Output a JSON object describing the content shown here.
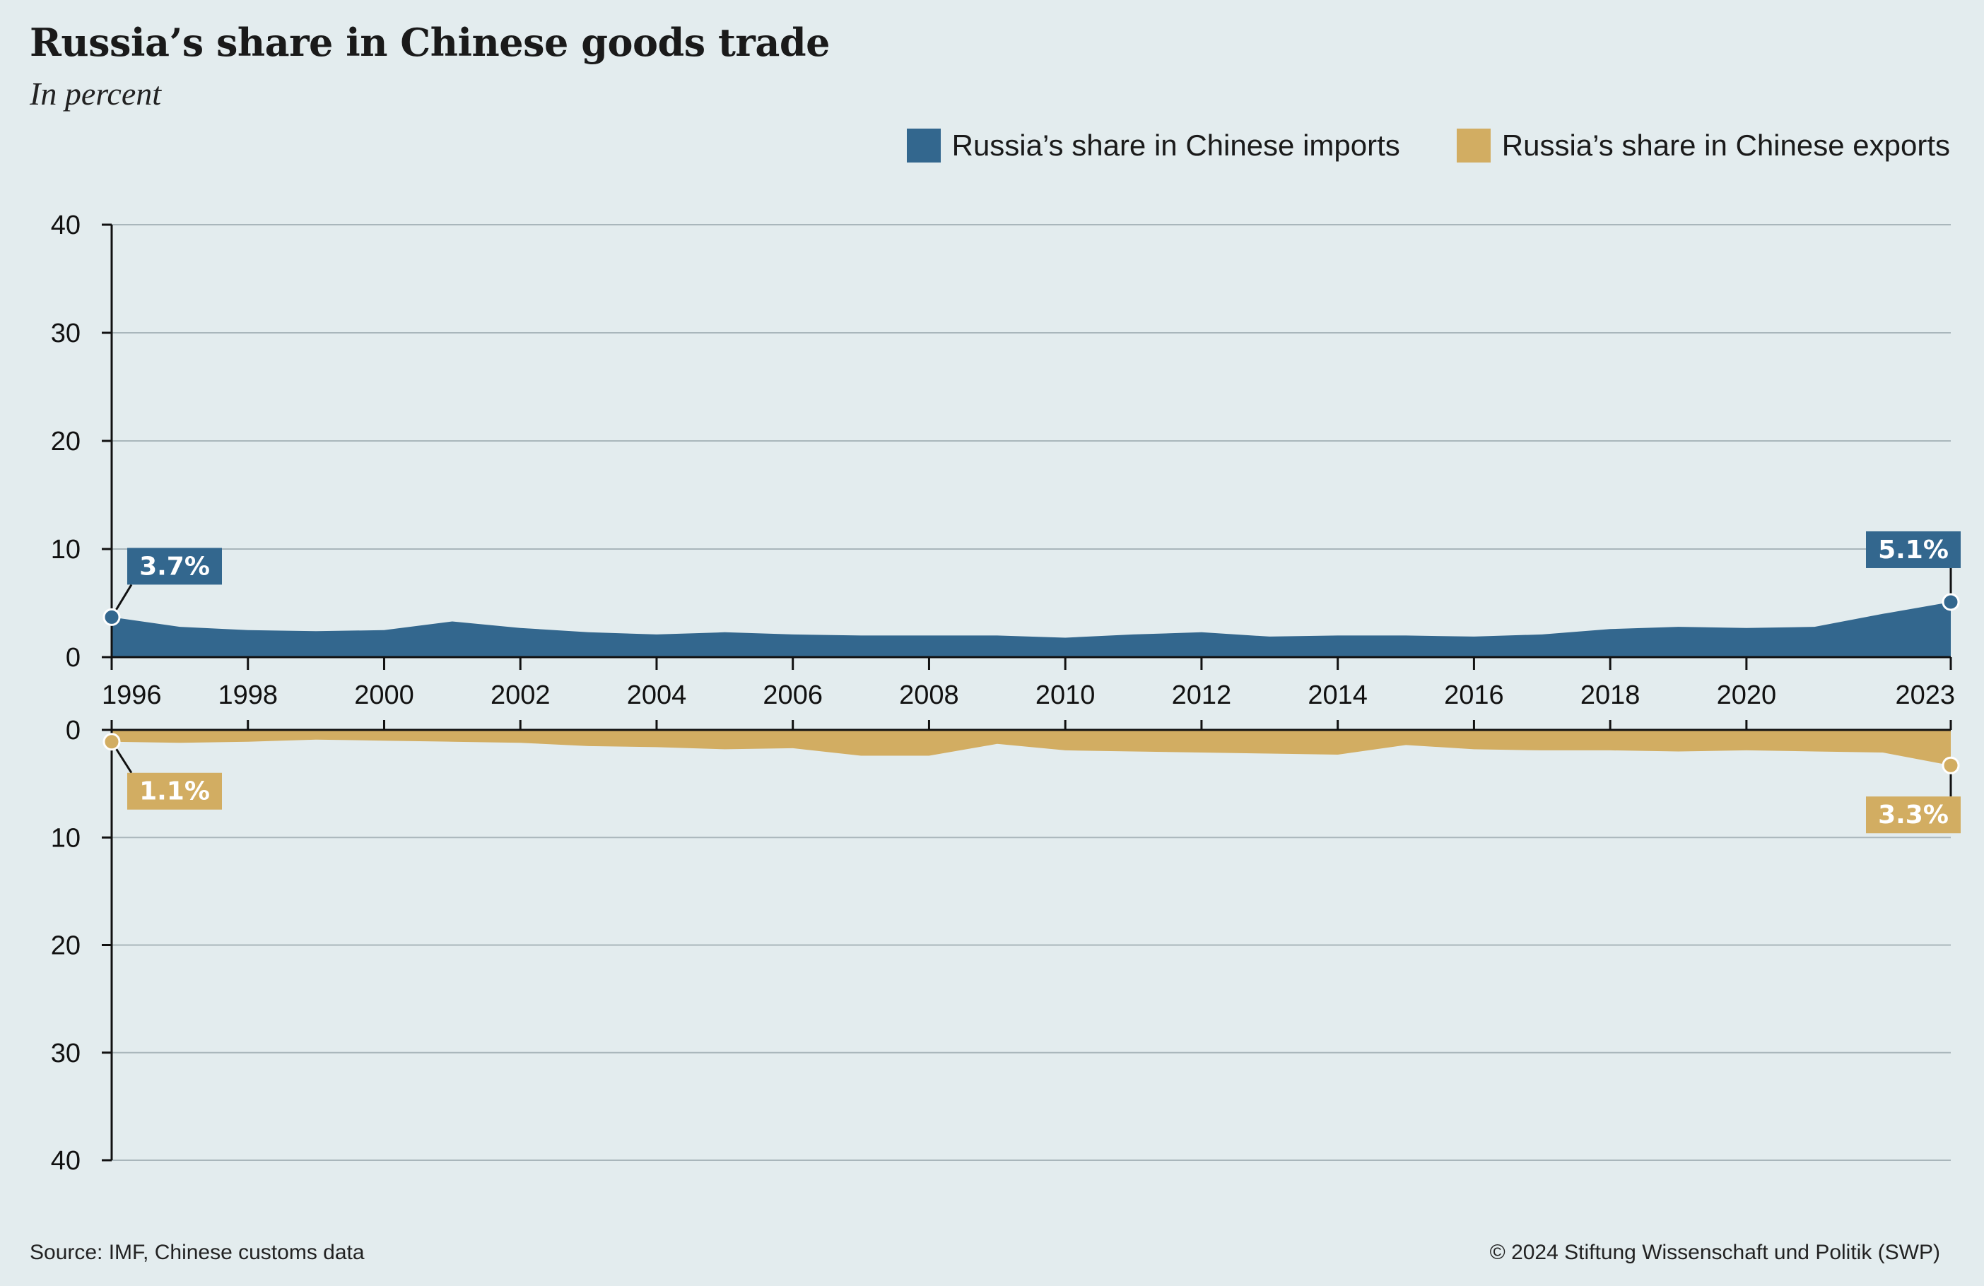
{
  "title": "Russia’s share in Chinese goods trade",
  "subtitle": "In percent",
  "legend": {
    "imports_label": "Russia’s share in Chinese imports",
    "exports_label": "Russia’s share in Chinese exports"
  },
  "footer": {
    "source": "Source: IMF, Chinese customs data",
    "copyright": "© 2024 Stiftung Wissenschaft und Politik (SWP)"
  },
  "colors": {
    "imports": "#33678e",
    "exports": "#d2ad62",
    "grid": "#a9b6bb",
    "background": "#e3ecee"
  },
  "chart_data": {
    "type": "area",
    "title": "Russia’s share in Chinese goods trade",
    "subtitle": "In percent",
    "x": [
      1996,
      1997,
      1998,
      1999,
      2000,
      2001,
      2002,
      2003,
      2004,
      2005,
      2006,
      2007,
      2008,
      2009,
      2010,
      2011,
      2012,
      2013,
      2014,
      2015,
      2016,
      2017,
      2018,
      2019,
      2020,
      2021,
      2022,
      2023
    ],
    "x_tick_labels": [
      "1996",
      "1998",
      "2000",
      "2002",
      "2004",
      "2006",
      "2008",
      "2010",
      "2012",
      "2014",
      "2016",
      "2018",
      "2020",
      "2023"
    ],
    "y_tick_labels_top": [
      "40",
      "30",
      "20",
      "10",
      "0"
    ],
    "y_tick_labels_bottom": [
      "0",
      "10",
      "20",
      "30",
      "40"
    ],
    "ylim": [
      0,
      40
    ],
    "grid": true,
    "legend_position": "top-right",
    "series": [
      {
        "name": "Russia’s share in Chinese imports",
        "panel": "top",
        "values": [
          3.7,
          2.8,
          2.5,
          2.4,
          2.5,
          3.3,
          2.7,
          2.3,
          2.1,
          2.3,
          2.1,
          2.0,
          2.0,
          2.0,
          1.8,
          2.1,
          2.3,
          1.9,
          2.0,
          2.0,
          1.9,
          2.1,
          2.6,
          2.8,
          2.7,
          2.8,
          4.0,
          5.1
        ]
      },
      {
        "name": "Russia’s share in Chinese exports",
        "panel": "bottom",
        "values": [
          1.1,
          1.2,
          1.1,
          0.9,
          1.0,
          1.1,
          1.2,
          1.5,
          1.6,
          1.8,
          1.7,
          2.4,
          2.4,
          1.3,
          1.9,
          2.0,
          2.1,
          2.2,
          2.3,
          1.4,
          1.8,
          1.9,
          1.9,
          2.0,
          1.9,
          2.0,
          2.1,
          3.3
        ]
      }
    ],
    "annotations": [
      {
        "series": "imports",
        "year": 1996,
        "label": "3.7%"
      },
      {
        "series": "imports",
        "year": 2023,
        "label": "5.1%"
      },
      {
        "series": "exports",
        "year": 1996,
        "label": "1.1%"
      },
      {
        "series": "exports",
        "year": 2023,
        "label": "3.3%"
      }
    ]
  }
}
